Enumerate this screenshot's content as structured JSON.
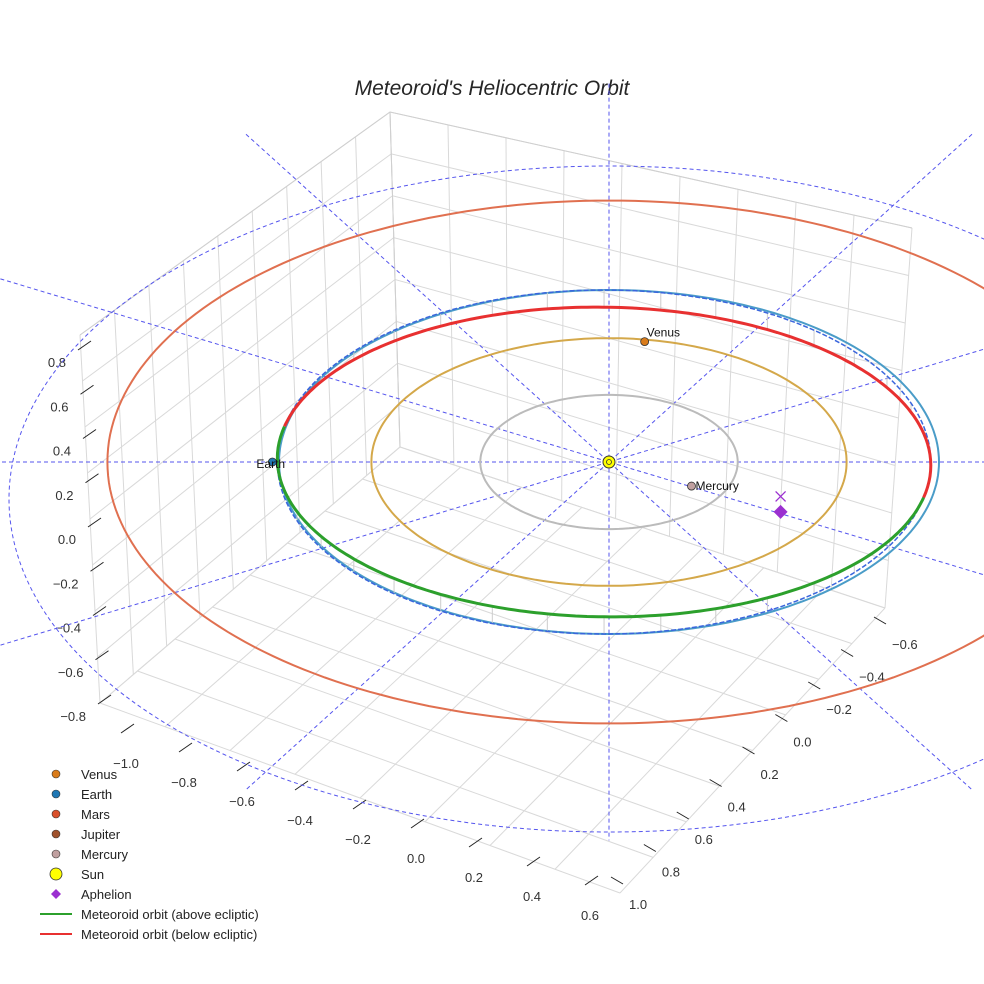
{
  "chart_data": {
    "type": "scatter3d",
    "title": "Meteoroid's Heliocentric Orbit",
    "axes": {
      "z_ticks": [
        "0.8",
        "0.6",
        "0.4",
        "0.2",
        "0.0",
        "−0.2",
        "−0.4",
        "−0.6",
        "−0.8"
      ],
      "x_ticks": [
        "−1.0",
        "−0.8",
        "−0.6",
        "−0.4",
        "−0.2",
        "0.0",
        "0.2",
        "0.4",
        "0.6"
      ],
      "y_ticks": [
        "−0.6",
        "−0.4",
        "−0.2",
        "0.0",
        "0.2",
        "0.4",
        "0.6",
        "0.8",
        "1.0"
      ],
      "z_range": [
        -0.9,
        0.9
      ]
    },
    "orbits": [
      {
        "name": "Mars orbit",
        "radius_au": 1.52,
        "color": "#e07050"
      },
      {
        "name": "Earth orbit",
        "radius_au": 1.0,
        "color": "#4a9cc8"
      },
      {
        "name": "Venus orbit",
        "radius_au": 0.72,
        "color": "#d4a84a"
      },
      {
        "name": "Mercury orbit",
        "radius_au": 0.39,
        "color": "#bbbbbb"
      }
    ],
    "bodies": [
      {
        "name": "Venus",
        "label": "Venus",
        "color": "#d97b1a"
      },
      {
        "name": "Earth",
        "label": "Earth",
        "color": "#1f77b4"
      },
      {
        "name": "Mercury",
        "label": "Mercury",
        "color": "#c0a0a0"
      },
      {
        "name": "Sun",
        "label": "",
        "color": "#ffff00"
      }
    ],
    "meteoroid": {
      "above_color": "#2ca02c",
      "below_color": "#e83030",
      "aphelion_color": "#9b30d0"
    },
    "legend": [
      {
        "label": "Venus",
        "marker": "dot",
        "color": "#d97b1a"
      },
      {
        "label": "Earth",
        "marker": "dot",
        "color": "#1f77b4"
      },
      {
        "label": "Mars",
        "marker": "dot",
        "color": "#d9502b"
      },
      {
        "label": "Jupiter",
        "marker": "dot",
        "color": "#a0522d"
      },
      {
        "label": "Mercury",
        "marker": "dot",
        "color": "#c0a0a0"
      },
      {
        "label": "Sun",
        "marker": "sun",
        "color": "#ffff00"
      },
      {
        "label": "Aphelion",
        "marker": "diamond",
        "color": "#9b30d0"
      },
      {
        "label": "Meteoroid orbit (above ecliptic)",
        "marker": "line",
        "color": "#2ca02c"
      },
      {
        "label": "Meteoroid orbit (below ecliptic)",
        "marker": "line",
        "color": "#e83030"
      }
    ]
  }
}
